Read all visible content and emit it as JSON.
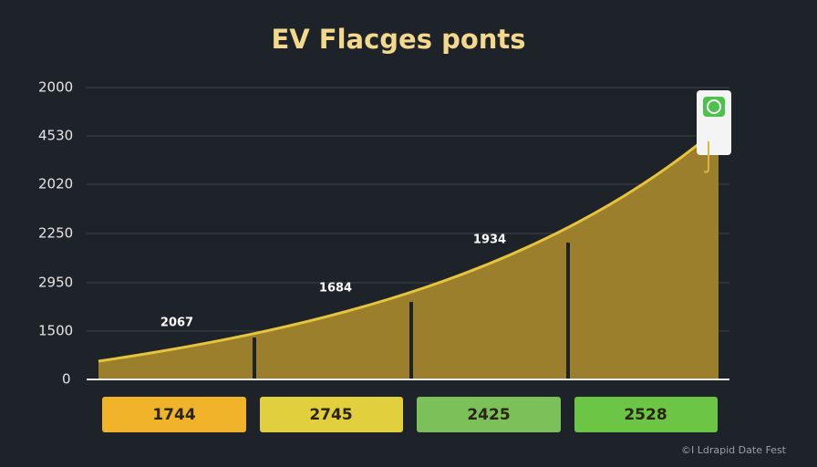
{
  "title": "EV Flacges ponts",
  "axis_labels": [
    "2000",
    "4530",
    "2020",
    "2250",
    "2950",
    "1500",
    "0"
  ],
  "point_labels": [
    "2067",
    "1684",
    "1934"
  ],
  "boxes": [
    "1744",
    "2745",
    "2425",
    "2528"
  ],
  "footer": "©I Ldrapid Date Fest"
}
